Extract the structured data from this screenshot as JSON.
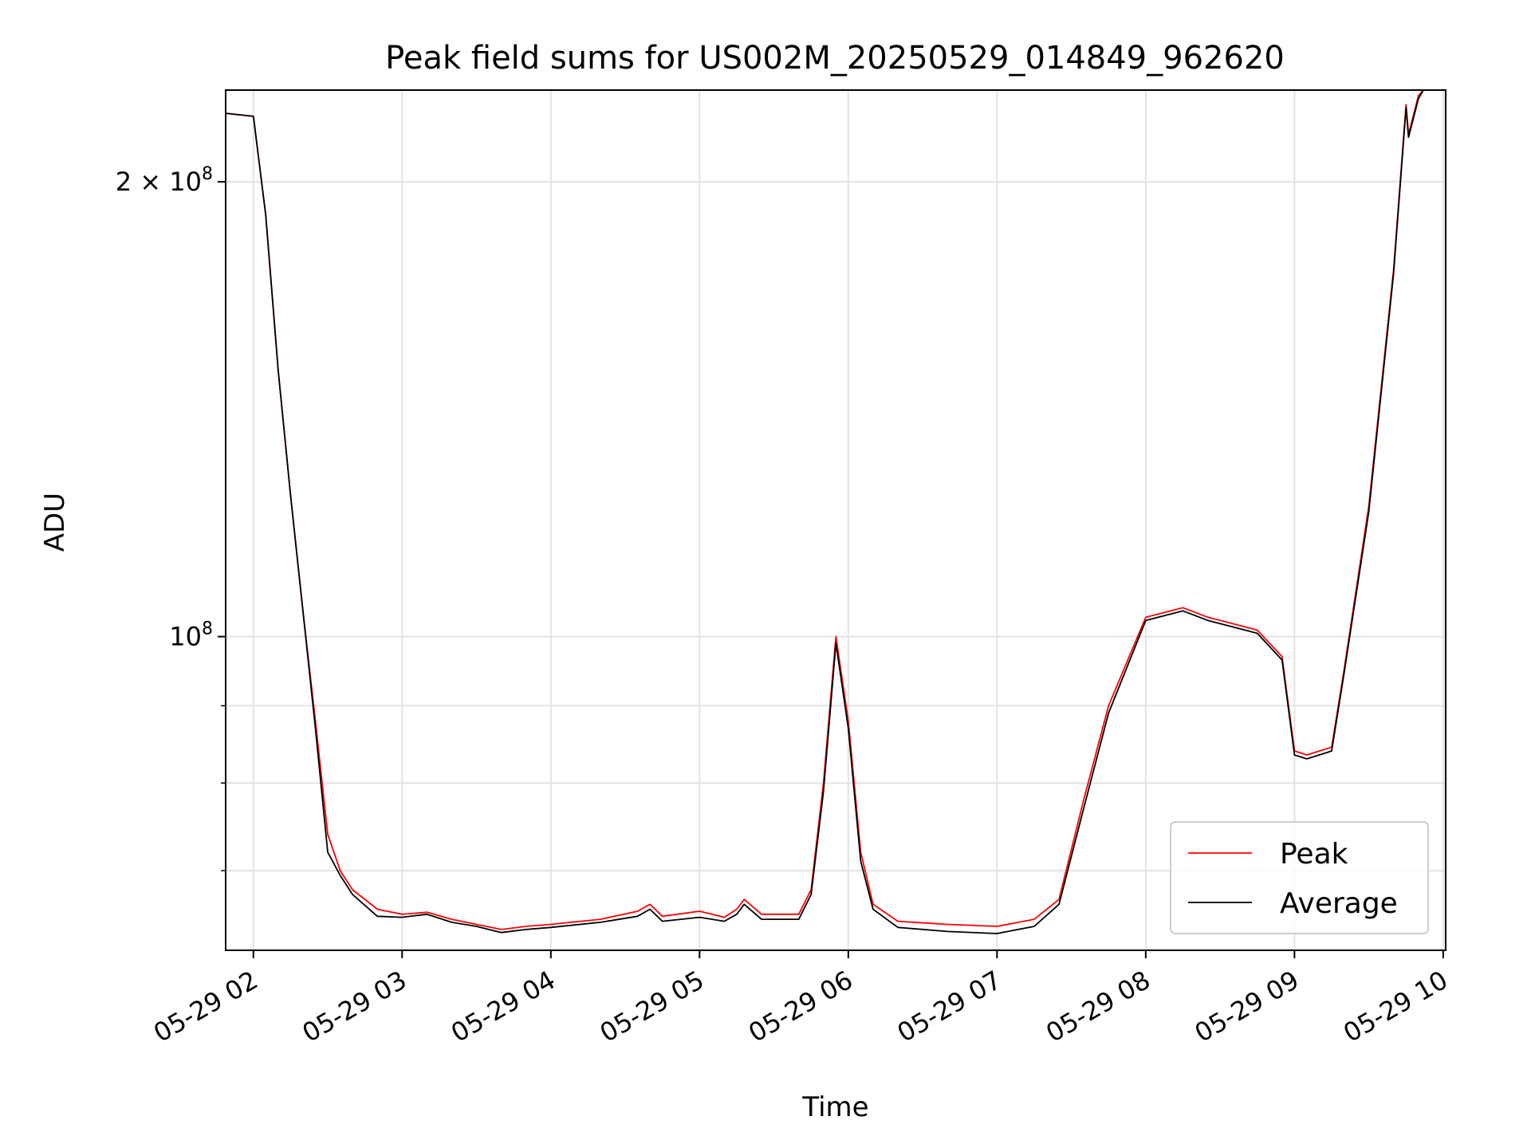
{
  "chart_data": {
    "type": "line",
    "title": "Peak field sums for US002M_20250529_014849_962620",
    "xlabel": "Time",
    "ylabel": "ADU",
    "yscale": "log",
    "grid": true,
    "legend_position": "lower-right",
    "x_ticks": [
      "05-29 02",
      "05-29 03",
      "05-29 04",
      "05-29 05",
      "05-29 06",
      "05-29 07",
      "05-29 08",
      "05-29 09",
      "05-29 10"
    ],
    "y_ticks": [
      {
        "value": 200000000,
        "base": "2 × 10",
        "exp": "8"
      },
      {
        "value": 100000000,
        "base": "10",
        "exp": "8"
      }
    ],
    "xlim": [
      "2025-05-29T01:48:49",
      "2025-05-29T10:01:00"
    ],
    "ylim": [
      62000000,
      230000000
    ],
    "series": [
      {
        "name": "Peak",
        "color": "#ff0000",
        "points": [
          [
            "2025-05-29T01:48:49",
            222000000
          ],
          [
            "2025-05-29T02:00:00",
            221000000
          ],
          [
            "2025-05-29T02:05:00",
            190000000
          ],
          [
            "2025-05-29T02:10:00",
            150000000
          ],
          [
            "2025-05-29T02:15:00",
            124000000
          ],
          [
            "2025-05-29T02:20:00",
            104000000
          ],
          [
            "2025-05-29T02:25:00",
            88000000
          ],
          [
            "2025-05-29T02:30:00",
            74000000
          ],
          [
            "2025-05-29T02:35:00",
            70000000
          ],
          [
            "2025-05-29T02:40:00",
            68000000
          ],
          [
            "2025-05-29T02:50:00",
            66000000
          ],
          [
            "2025-05-29T03:00:00",
            65500000
          ],
          [
            "2025-05-29T03:10:00",
            65700000
          ],
          [
            "2025-05-29T03:20:00",
            65000000
          ],
          [
            "2025-05-29T03:30:00",
            64500000
          ],
          [
            "2025-05-29T03:40:00",
            64000000
          ],
          [
            "2025-05-29T03:50:00",
            64300000
          ],
          [
            "2025-05-29T04:00:00",
            64500000
          ],
          [
            "2025-05-29T04:20:00",
            65000000
          ],
          [
            "2025-05-29T04:35:00",
            65800000
          ],
          [
            "2025-05-29T04:40:00",
            66500000
          ],
          [
            "2025-05-29T04:45:00",
            65300000
          ],
          [
            "2025-05-29T05:00:00",
            65800000
          ],
          [
            "2025-05-29T05:10:00",
            65200000
          ],
          [
            "2025-05-29T05:15:00",
            66000000
          ],
          [
            "2025-05-29T05:18:00",
            67000000
          ],
          [
            "2025-05-29T05:25:00",
            65500000
          ],
          [
            "2025-05-29T05:40:00",
            65500000
          ],
          [
            "2025-05-29T05:45:00",
            68000000
          ],
          [
            "2025-05-29T05:50:00",
            80000000
          ],
          [
            "2025-05-29T05:55:00",
            100000000
          ],
          [
            "2025-05-29T06:00:00",
            88000000
          ],
          [
            "2025-05-29T06:05:00",
            72000000
          ],
          [
            "2025-05-29T06:10:00",
            66500000
          ],
          [
            "2025-05-29T06:20:00",
            64800000
          ],
          [
            "2025-05-29T06:40:00",
            64500000
          ],
          [
            "2025-05-29T07:00:00",
            64300000
          ],
          [
            "2025-05-29T07:15:00",
            65000000
          ],
          [
            "2025-05-29T07:25:00",
            67000000
          ],
          [
            "2025-05-29T07:35:00",
            78000000
          ],
          [
            "2025-05-29T07:45:00",
            90000000
          ],
          [
            "2025-05-29T08:00:00",
            103000000
          ],
          [
            "2025-05-29T08:15:00",
            104500000
          ],
          [
            "2025-05-29T08:25:00",
            103000000
          ],
          [
            "2025-05-29T08:35:00",
            102000000
          ],
          [
            "2025-05-29T08:45:00",
            101000000
          ],
          [
            "2025-05-29T08:55:00",
            97000000
          ],
          [
            "2025-05-29T09:00:00",
            84000000
          ],
          [
            "2025-05-29T09:05:00",
            83500000
          ],
          [
            "2025-05-29T09:10:00",
            84000000
          ],
          [
            "2025-05-29T09:15:00",
            84500000
          ],
          [
            "2025-05-29T09:20:00",
            95000000
          ],
          [
            "2025-05-29T09:30:00",
            122000000
          ],
          [
            "2025-05-29T09:40:00",
            175000000
          ],
          [
            "2025-05-29T09:45:00",
            225000000
          ],
          [
            "2025-05-29T09:46:00",
            215000000
          ],
          [
            "2025-05-29T09:50:00",
            228000000
          ],
          [
            "2025-05-29T09:52:00",
            230000000
          ]
        ]
      },
      {
        "name": "Average",
        "color": "#000000",
        "points": [
          [
            "2025-05-29T01:48:49",
            222000000
          ],
          [
            "2025-05-29T02:00:00",
            221000000
          ],
          [
            "2025-05-29T02:05:00",
            190000000
          ],
          [
            "2025-05-29T02:10:00",
            150000000
          ],
          [
            "2025-05-29T02:15:00",
            124000000
          ],
          [
            "2025-05-29T02:20:00",
            104000000
          ],
          [
            "2025-05-29T02:25:00",
            87000000
          ],
          [
            "2025-05-29T02:30:00",
            72000000
          ],
          [
            "2025-05-29T02:35:00",
            69500000
          ],
          [
            "2025-05-29T02:40:00",
            67500000
          ],
          [
            "2025-05-29T02:50:00",
            65300000
          ],
          [
            "2025-05-29T03:00:00",
            65200000
          ],
          [
            "2025-05-29T03:10:00",
            65500000
          ],
          [
            "2025-05-29T03:20:00",
            64700000
          ],
          [
            "2025-05-29T03:30:00",
            64300000
          ],
          [
            "2025-05-29T03:40:00",
            63700000
          ],
          [
            "2025-05-29T03:50:00",
            64000000
          ],
          [
            "2025-05-29T04:00:00",
            64200000
          ],
          [
            "2025-05-29T04:20:00",
            64700000
          ],
          [
            "2025-05-29T04:35:00",
            65300000
          ],
          [
            "2025-05-29T04:40:00",
            66000000
          ],
          [
            "2025-05-29T04:45:00",
            64800000
          ],
          [
            "2025-05-29T05:00:00",
            65200000
          ],
          [
            "2025-05-29T05:10:00",
            64800000
          ],
          [
            "2025-05-29T05:15:00",
            65500000
          ],
          [
            "2025-05-29T05:18:00",
            66500000
          ],
          [
            "2025-05-29T05:25:00",
            65000000
          ],
          [
            "2025-05-29T05:40:00",
            65000000
          ],
          [
            "2025-05-29T05:45:00",
            67500000
          ],
          [
            "2025-05-29T05:50:00",
            79000000
          ],
          [
            "2025-05-29T05:55:00",
            99000000
          ],
          [
            "2025-05-29T06:00:00",
            87000000
          ],
          [
            "2025-05-29T06:05:00",
            71000000
          ],
          [
            "2025-05-29T06:10:00",
            66000000
          ],
          [
            "2025-05-29T06:20:00",
            64200000
          ],
          [
            "2025-05-29T06:40:00",
            63800000
          ],
          [
            "2025-05-29T07:00:00",
            63600000
          ],
          [
            "2025-05-29T07:15:00",
            64300000
          ],
          [
            "2025-05-29T07:25:00",
            66500000
          ],
          [
            "2025-05-29T07:35:00",
            77000000
          ],
          [
            "2025-05-29T07:45:00",
            89000000
          ],
          [
            "2025-05-29T08:00:00",
            102500000
          ],
          [
            "2025-05-29T08:15:00",
            104000000
          ],
          [
            "2025-05-29T08:25:00",
            102500000
          ],
          [
            "2025-05-29T08:35:00",
            101500000
          ],
          [
            "2025-05-29T08:45:00",
            100500000
          ],
          [
            "2025-05-29T08:55:00",
            96500000
          ],
          [
            "2025-05-29T09:00:00",
            83500000
          ],
          [
            "2025-05-29T09:05:00",
            83000000
          ],
          [
            "2025-05-29T09:10:00",
            83500000
          ],
          [
            "2025-05-29T09:15:00",
            84000000
          ],
          [
            "2025-05-29T09:20:00",
            94500000
          ],
          [
            "2025-05-29T09:30:00",
            121000000
          ],
          [
            "2025-05-29T09:40:00",
            174000000
          ],
          [
            "2025-05-29T09:45:00",
            224000000
          ],
          [
            "2025-05-29T09:46:00",
            214000000
          ],
          [
            "2025-05-29T09:50:00",
            227000000
          ],
          [
            "2025-05-29T09:52:00",
            230000000
          ]
        ]
      }
    ]
  }
}
